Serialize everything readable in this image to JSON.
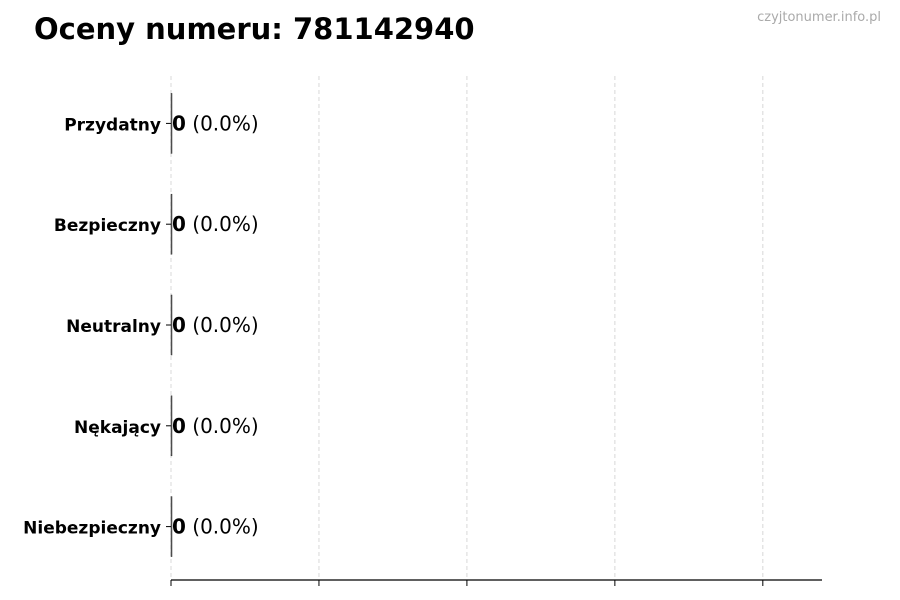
{
  "title": "Oceny numeru: 781142940",
  "watermark": "czyjtonumer.info.pl",
  "chart_data": {
    "type": "bar",
    "orientation": "horizontal",
    "categories": [
      "Przydatny",
      "Bezpieczny",
      "Neutralny",
      "Nękający",
      "Niebezpieczny"
    ],
    "values": [
      0,
      0,
      0,
      0,
      0
    ],
    "value_labels": [
      "0",
      "0",
      "0",
      "0",
      "0"
    ],
    "percent_labels": [
      "(0.0%)",
      "(0.0%)",
      "(0.0%)",
      "(0.0%)",
      "(0.0%)"
    ],
    "xlim": [
      0,
      4.4
    ],
    "xticks": [
      0,
      1,
      2,
      3,
      4
    ],
    "xtick_labels_shown": false,
    "grid": "x, dashed",
    "bar_edge_color": "#333333"
  }
}
